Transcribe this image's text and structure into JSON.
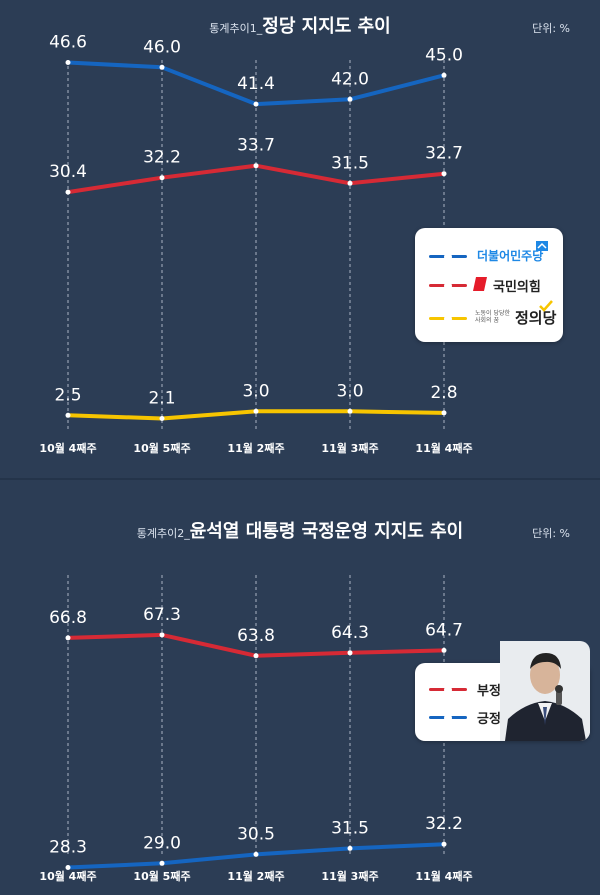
{
  "colors": {
    "background": "#2c3d55",
    "blue": "#1565c0",
    "red": "#d62a35",
    "yellow": "#f7c500",
    "label_text": "#ffffff"
  },
  "chart_data": [
    {
      "type": "line",
      "title_prefix": "통계추이1_",
      "title": "정당 지지도 추이",
      "unit": "단위: %",
      "categories": [
        "10월 4째주",
        "10월 5째주",
        "11월 2째주",
        "11월 3째주",
        "11월 4째주"
      ],
      "ylim": [
        0,
        50
      ],
      "series": [
        {
          "name": "더불어민주당",
          "color": "#1565c0",
          "values": [
            46.6,
            46.0,
            41.4,
            42.0,
            45.0
          ]
        },
        {
          "name": "국민의힘",
          "color": "#d62a35",
          "values": [
            30.4,
            32.2,
            33.7,
            31.5,
            32.7
          ]
        },
        {
          "name": "정의당",
          "color": "#f7c500",
          "values": [
            2.5,
            2.1,
            3.0,
            3.0,
            2.8
          ]
        }
      ],
      "legend": {
        "placement": "right",
        "logos": [
          {
            "icon": "minjoo-party-logo",
            "text": "더불어민주당"
          },
          {
            "icon": "ppp-party-logo",
            "text": "국민의힘"
          },
          {
            "icon": "justice-party-logo",
            "text": "정의당",
            "tagline": "노동이 당당한 사회의 꿈"
          }
        ]
      }
    },
    {
      "type": "line",
      "title_prefix": "통계추이2_",
      "title": "윤석열 대통령 국정운영 지지도 추이",
      "unit": "단위: %",
      "categories": [
        "10월 4째주",
        "10월 5째주",
        "11월 2째주",
        "11월 3째주",
        "11월 4째주"
      ],
      "ylim": [
        20,
        75
      ],
      "series": [
        {
          "name": "부정",
          "color": "#d62a35",
          "values": [
            66.8,
            67.3,
            63.8,
            64.3,
            64.7
          ]
        },
        {
          "name": "긍정",
          "color": "#1565c0",
          "values": [
            28.3,
            29.0,
            30.5,
            31.5,
            32.2
          ]
        }
      ],
      "legend": {
        "placement": "right",
        "photo_icon": "president-photo"
      }
    }
  ]
}
